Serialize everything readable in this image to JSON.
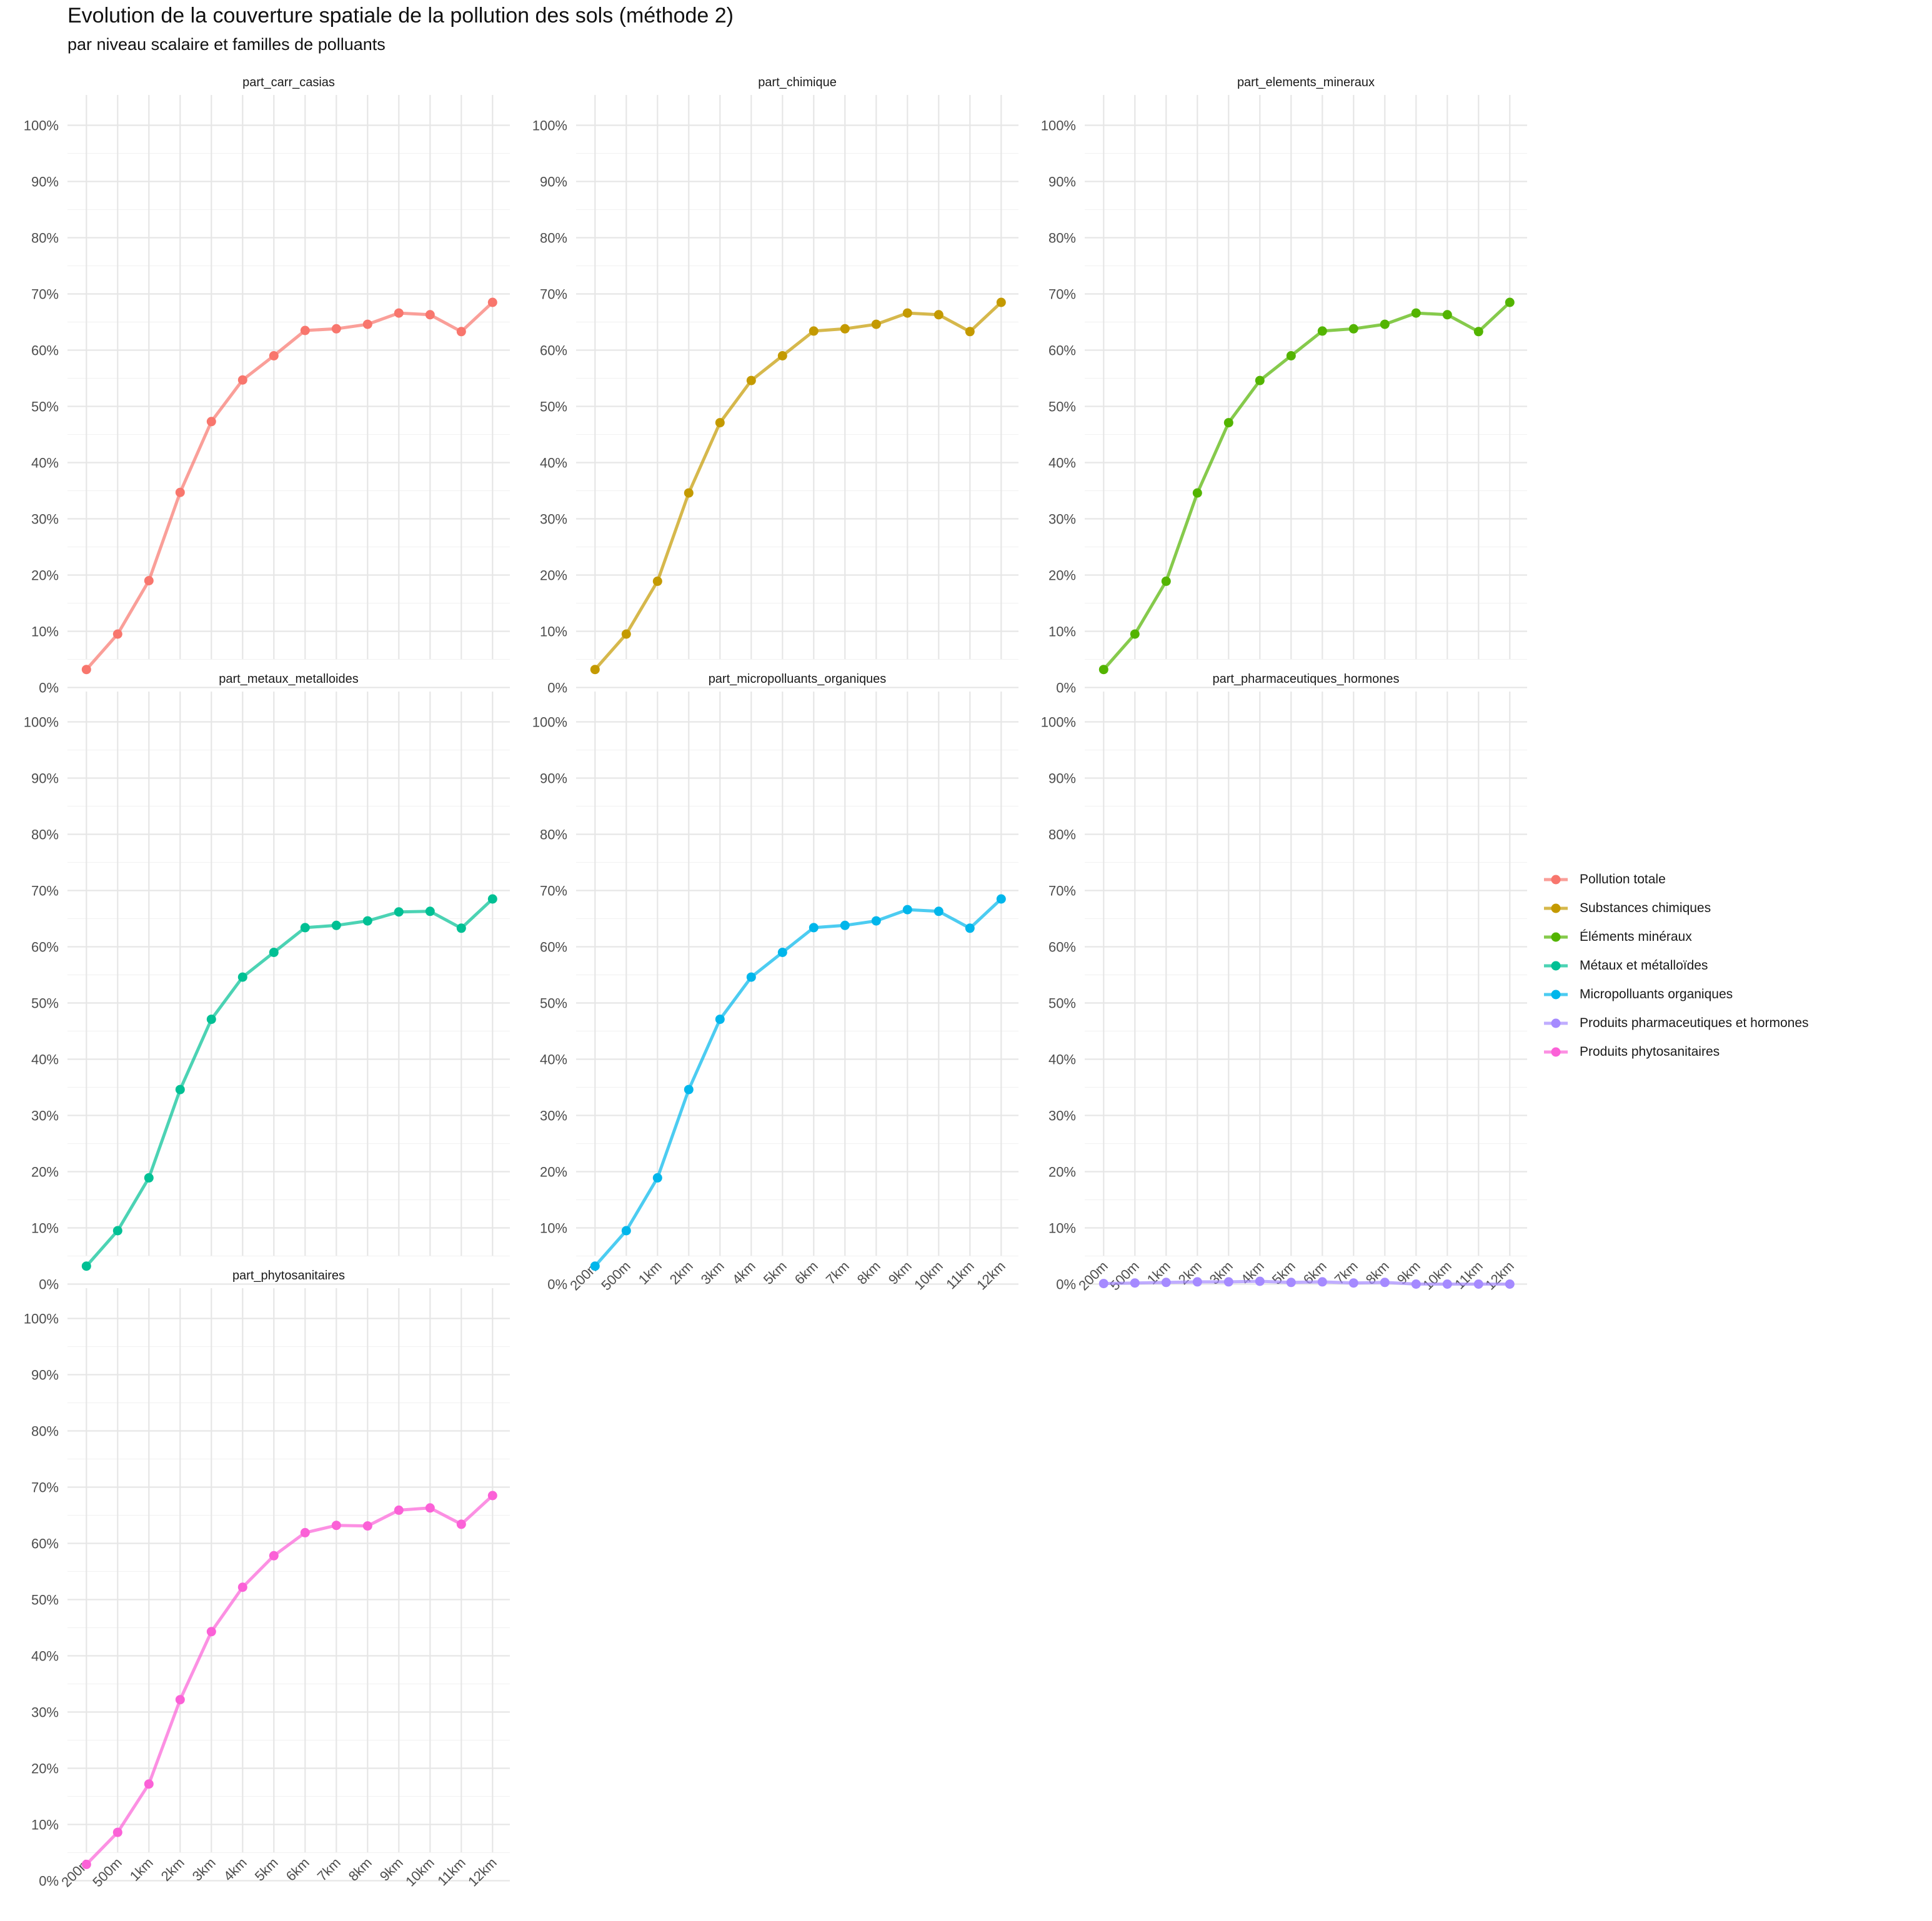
{
  "chart_data": {
    "type": "line",
    "title": "Evolution de la couverture spatiale de la pollution des sols (méthode 2)",
    "subtitle": "par niveau scalaire et familles de polluants",
    "x": [
      "200m",
      "500m",
      "1km",
      "2km",
      "3km",
      "4km",
      "5km",
      "6km",
      "7km",
      "8km",
      "9km",
      "10km",
      "11km",
      "12km"
    ],
    "ylim": [
      0,
      100
    ],
    "yticks": [
      0,
      10,
      20,
      30,
      40,
      50,
      60,
      70,
      80,
      90,
      100
    ],
    "ytick_labels": [
      "0%",
      "10%",
      "20%",
      "30%",
      "40%",
      "50%",
      "60%",
      "70%",
      "80%",
      "90%",
      "100%"
    ],
    "grid": true,
    "legend_position": "right",
    "panels": [
      {
        "facet": "part_carr_casias",
        "series": "Pollution totale",
        "color": "#F8766D",
        "values": [
          3.2,
          9.5,
          19.0,
          34.7,
          47.3,
          54.7,
          59.0,
          63.5,
          63.8,
          64.6,
          66.6,
          66.3,
          63.3,
          68.5
        ]
      },
      {
        "facet": "part_chimique",
        "series": "Substances chimiques",
        "color": "#C49A00",
        "values": [
          3.2,
          9.5,
          18.9,
          34.6,
          47.1,
          54.6,
          59.0,
          63.4,
          63.8,
          64.6,
          66.6,
          66.3,
          63.3,
          68.5
        ]
      },
      {
        "facet": "part_elements_mineraux",
        "series": "Éléments minéraux",
        "color": "#53B400",
        "values": [
          3.2,
          9.5,
          18.9,
          34.6,
          47.1,
          54.6,
          59.0,
          63.4,
          63.8,
          64.6,
          66.6,
          66.3,
          63.3,
          68.5
        ]
      },
      {
        "facet": "part_metaux_metalloides",
        "series": "Métaux et métalloïdes",
        "color": "#00C094",
        "values": [
          3.2,
          9.5,
          18.9,
          34.6,
          47.1,
          54.6,
          59.0,
          63.4,
          63.8,
          64.6,
          66.2,
          66.3,
          63.3,
          68.5
        ]
      },
      {
        "facet": "part_micropolluants_organiques",
        "series": "Micropolluants organiques",
        "color": "#00B6EB",
        "values": [
          3.2,
          9.5,
          18.9,
          34.6,
          47.1,
          54.6,
          59.0,
          63.4,
          63.8,
          64.6,
          66.6,
          66.3,
          63.3,
          68.5
        ]
      },
      {
        "facet": "part_pharmaceutiques_hormones",
        "series": "Produits pharmaceutiques et hormones",
        "color": "#A58AFF",
        "values": [
          0.1,
          0.2,
          0.3,
          0.4,
          0.4,
          0.5,
          0.3,
          0.4,
          0.2,
          0.3,
          0.0,
          0.0,
          0.0,
          0.0
        ]
      },
      {
        "facet": "part_phytosanitaires",
        "series": "Produits phytosanitaires",
        "color": "#FB61D7",
        "values": [
          2.9,
          8.6,
          17.2,
          32.2,
          44.3,
          52.2,
          57.8,
          61.9,
          63.2,
          63.1,
          65.9,
          66.3,
          63.4,
          68.5
        ]
      }
    ]
  }
}
